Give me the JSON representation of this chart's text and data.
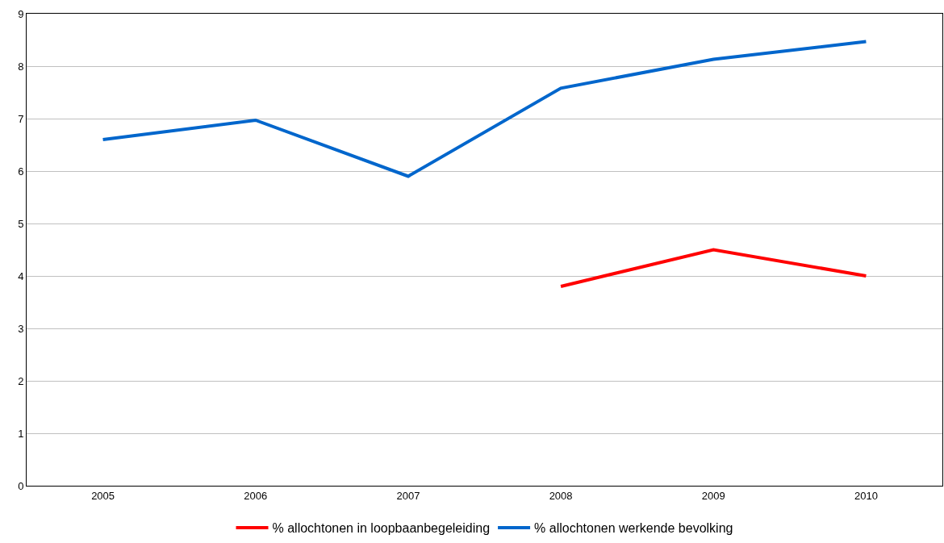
{
  "chart_data": {
    "type": "line",
    "categories": [
      "2005",
      "2006",
      "2007",
      "2008",
      "2009",
      "2010"
    ],
    "series": [
      {
        "name": "% allochtonen in loopbaanbegeleiding",
        "color": "#ff0000",
        "values": [
          null,
          null,
          null,
          3.8,
          4.5,
          4.0
        ]
      },
      {
        "name": "% allochtonen werkende bevolking",
        "color": "#0066cc",
        "values": [
          6.6,
          6.97,
          5.9,
          7.58,
          8.13,
          8.47
        ]
      }
    ],
    "ylim": [
      0,
      9
    ],
    "yticks": [
      0,
      1,
      2,
      3,
      4,
      5,
      6,
      7,
      8,
      9
    ],
    "grid": "y",
    "legend": "bottom",
    "marker": "none",
    "line_style": "solid"
  }
}
